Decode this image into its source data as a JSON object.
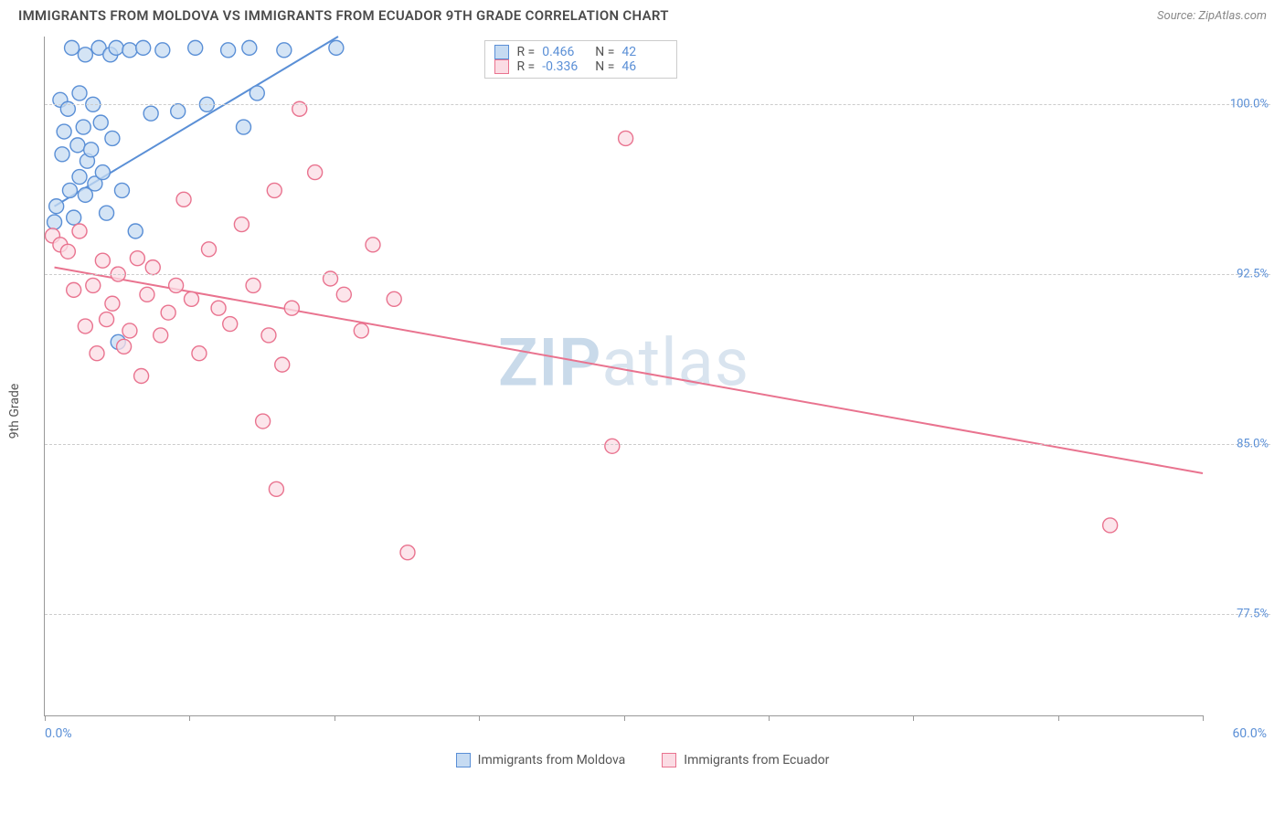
{
  "title": "IMMIGRANTS FROM MOLDOVA VS IMMIGRANTS FROM ECUADOR 9TH GRADE CORRELATION CHART",
  "source": "Source: ZipAtlas.com",
  "ylabel": "9th Grade",
  "watermark_a": "ZIP",
  "watermark_b": "atlas",
  "chart": {
    "type": "scatter",
    "xlim": [
      0,
      60
    ],
    "ylim": [
      73,
      103
    ],
    "xticks": [
      0,
      7.5,
      15,
      22.5,
      30,
      37.5,
      45,
      52.5,
      60
    ],
    "yticks": [
      77.5,
      85.0,
      92.5,
      100.0
    ],
    "ytick_labels": [
      "77.5%",
      "85.0%",
      "92.5%",
      "100.0%"
    ],
    "xlim_labels": [
      "0.0%",
      "60.0%"
    ],
    "grid_color": "#cccccc",
    "axis_color": "#999999",
    "background_color": "#ffffff",
    "marker_radius": 8,
    "marker_stroke_width": 1.4,
    "line_width": 2,
    "label_color": "#5a8fd6",
    "text_color": "#555555",
    "label_fontsize": 14,
    "tick_fontsize": 13
  },
  "series": [
    {
      "name": "Immigrants from Moldova",
      "fill": "#c6dbf2",
      "stroke": "#5a8fd6",
      "r_label": "R =",
      "r_value": "0.466",
      "n_label": "N =",
      "n_value": "42",
      "trend": {
        "x1": 0.5,
        "y1": 95.5,
        "x2": 15.2,
        "y2": 103.0
      },
      "points": [
        [
          0.5,
          94.8
        ],
        [
          0.6,
          95.5
        ],
        [
          0.8,
          100.2
        ],
        [
          0.9,
          97.8
        ],
        [
          1.0,
          98.8
        ],
        [
          1.2,
          99.8
        ],
        [
          1.3,
          96.2
        ],
        [
          1.4,
          102.5
        ],
        [
          1.5,
          95.0
        ],
        [
          1.7,
          98.2
        ],
        [
          1.8,
          100.5
        ],
        [
          1.8,
          96.8
        ],
        [
          2.0,
          99.0
        ],
        [
          2.1,
          96.0
        ],
        [
          2.1,
          102.2
        ],
        [
          2.2,
          97.5
        ],
        [
          2.4,
          98.0
        ],
        [
          2.5,
          100.0
        ],
        [
          2.6,
          96.5
        ],
        [
          2.8,
          102.5
        ],
        [
          2.9,
          99.2
        ],
        [
          3.0,
          97.0
        ],
        [
          3.2,
          95.2
        ],
        [
          3.4,
          102.2
        ],
        [
          3.5,
          98.5
        ],
        [
          3.7,
          102.5
        ],
        [
          3.8,
          89.5
        ],
        [
          4.0,
          96.2
        ],
        [
          4.4,
          102.4
        ],
        [
          4.7,
          94.4
        ],
        [
          5.1,
          102.5
        ],
        [
          5.5,
          99.6
        ],
        [
          6.1,
          102.4
        ],
        [
          6.9,
          99.7
        ],
        [
          7.8,
          102.5
        ],
        [
          8.4,
          100.0
        ],
        [
          9.5,
          102.4
        ],
        [
          10.3,
          99.0
        ],
        [
          10.6,
          102.5
        ],
        [
          11.0,
          100.5
        ],
        [
          12.4,
          102.4
        ],
        [
          15.1,
          102.5
        ]
      ]
    },
    {
      "name": "Immigrants from Ecuador",
      "fill": "#fbdce4",
      "stroke": "#e9738f",
      "r_label": "R =",
      "r_value": "-0.336",
      "n_label": "N =",
      "n_value": "46",
      "trend": {
        "x1": 0.5,
        "y1": 92.8,
        "x2": 60,
        "y2": 83.7
      },
      "points": [
        [
          0.4,
          94.2
        ],
        [
          0.8,
          93.8
        ],
        [
          1.2,
          93.5
        ],
        [
          1.5,
          91.8
        ],
        [
          1.8,
          94.4
        ],
        [
          2.1,
          90.2
        ],
        [
          2.5,
          92.0
        ],
        [
          2.7,
          89.0
        ],
        [
          3.0,
          93.1
        ],
        [
          3.2,
          90.5
        ],
        [
          3.5,
          91.2
        ],
        [
          3.8,
          92.5
        ],
        [
          4.1,
          89.3
        ],
        [
          4.4,
          90.0
        ],
        [
          4.8,
          93.2
        ],
        [
          5.0,
          88.0
        ],
        [
          5.3,
          91.6
        ],
        [
          5.6,
          92.8
        ],
        [
          6.0,
          89.8
        ],
        [
          6.4,
          90.8
        ],
        [
          6.8,
          92.0
        ],
        [
          7.2,
          95.8
        ],
        [
          7.6,
          91.4
        ],
        [
          8.0,
          89.0
        ],
        [
          8.5,
          93.6
        ],
        [
          9.0,
          91.0
        ],
        [
          9.6,
          90.3
        ],
        [
          10.2,
          94.7
        ],
        [
          10.8,
          92.0
        ],
        [
          11.3,
          86.0
        ],
        [
          11.6,
          89.8
        ],
        [
          11.9,
          96.2
        ],
        [
          12.3,
          88.5
        ],
        [
          12.8,
          91.0
        ],
        [
          13.2,
          99.8
        ],
        [
          14.0,
          97.0
        ],
        [
          14.8,
          92.3
        ],
        [
          15.5,
          91.6
        ],
        [
          16.4,
          90.0
        ],
        [
          17.0,
          93.8
        ],
        [
          18.1,
          91.4
        ],
        [
          18.8,
          80.2
        ],
        [
          29.4,
          84.9
        ],
        [
          30.1,
          98.5
        ],
        [
          55.2,
          81.4
        ],
        [
          12.0,
          83.0
        ]
      ]
    }
  ],
  "bottom_legend": {
    "items": [
      {
        "label": "Immigrants from Moldova",
        "fill": "#c6dbf2",
        "stroke": "#5a8fd6"
      },
      {
        "label": "Immigrants from Ecuador",
        "fill": "#fbdce4",
        "stroke": "#e9738f"
      }
    ]
  }
}
